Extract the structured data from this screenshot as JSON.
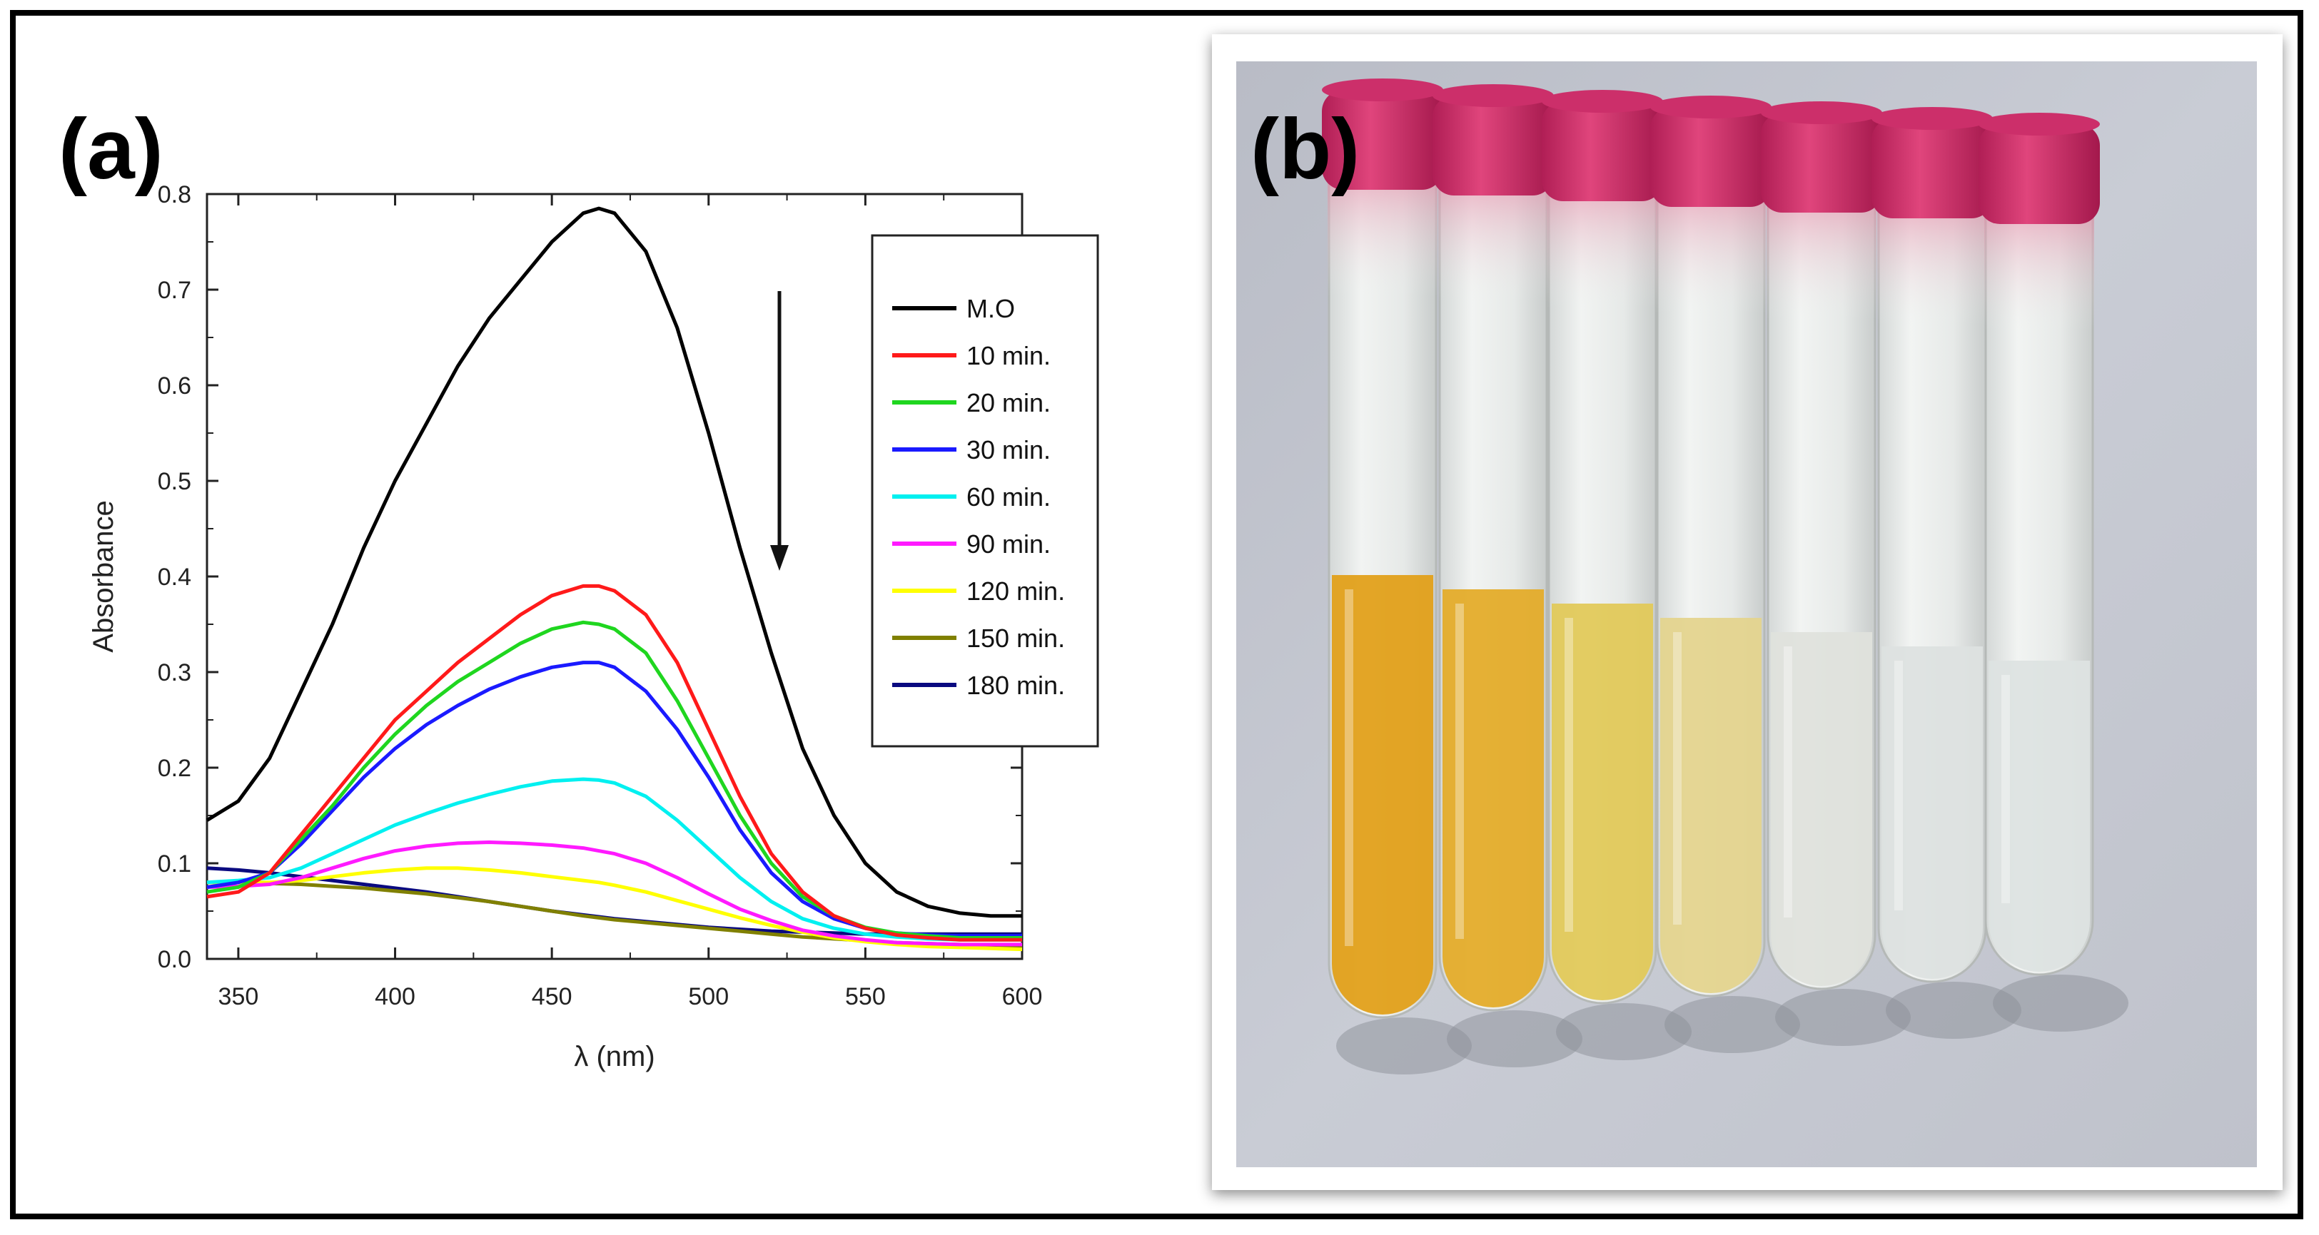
{
  "panels": {
    "a_label": "(a)",
    "b_label": "(b)"
  },
  "colors": {
    "M.O": "#000000",
    "10 min.": "#ff1a1a",
    "20 min.": "#1fd61f",
    "30 min.": "#1a1aff",
    "60 min.": "#00f0f0",
    "90 min.": "#ff1aff",
    "120 min.": "#ffff00",
    "150 min.": "#808000",
    "180 min.": "#0a0a80"
  },
  "chart_data": {
    "type": "line",
    "title": "",
    "xlabel": "λ (nm)",
    "ylabel": "Absorbance",
    "xlim": [
      340,
      600
    ],
    "ylim": [
      0.0,
      0.8
    ],
    "xticks": [
      350,
      400,
      450,
      500,
      550,
      600
    ],
    "yticks": [
      0.0,
      0.1,
      0.2,
      0.3,
      0.4,
      0.5,
      0.6,
      0.7,
      0.8
    ],
    "ytick_labels": [
      "0.0",
      "0.1",
      "0.2",
      "0.3",
      "0.4",
      "0.5",
      "0.6",
      "0.7",
      "0.8"
    ],
    "legend_position": "top-right",
    "annotation": "downward arrow indicating decreasing absorbance with time",
    "series": [
      {
        "name": "M.O",
        "x": [
          340,
          350,
          360,
          370,
          380,
          390,
          400,
          410,
          420,
          430,
          440,
          450,
          460,
          465,
          470,
          480,
          490,
          500,
          510,
          520,
          530,
          540,
          550,
          560,
          570,
          580,
          590,
          600
        ],
        "y": [
          0.145,
          0.165,
          0.21,
          0.28,
          0.35,
          0.43,
          0.5,
          0.56,
          0.62,
          0.67,
          0.71,
          0.75,
          0.78,
          0.785,
          0.78,
          0.74,
          0.66,
          0.55,
          0.43,
          0.32,
          0.22,
          0.15,
          0.1,
          0.07,
          0.055,
          0.048,
          0.045,
          0.045
        ]
      },
      {
        "name": "10 min.",
        "x": [
          340,
          350,
          360,
          370,
          380,
          390,
          400,
          410,
          420,
          430,
          440,
          450,
          460,
          465,
          470,
          480,
          490,
          500,
          510,
          520,
          530,
          540,
          550,
          560,
          570,
          580,
          590,
          600
        ],
        "y": [
          0.065,
          0.07,
          0.09,
          0.13,
          0.17,
          0.21,
          0.25,
          0.28,
          0.31,
          0.335,
          0.36,
          0.38,
          0.39,
          0.39,
          0.385,
          0.36,
          0.31,
          0.24,
          0.17,
          0.11,
          0.07,
          0.045,
          0.032,
          0.025,
          0.022,
          0.02,
          0.02,
          0.02
        ]
      },
      {
        "name": "20 min.",
        "x": [
          340,
          350,
          360,
          370,
          380,
          390,
          400,
          410,
          420,
          430,
          440,
          450,
          460,
          465,
          470,
          480,
          490,
          500,
          510,
          520,
          530,
          540,
          550,
          560,
          570,
          580,
          590,
          600
        ],
        "y": [
          0.07,
          0.075,
          0.09,
          0.125,
          0.16,
          0.2,
          0.235,
          0.265,
          0.29,
          0.31,
          0.33,
          0.345,
          0.352,
          0.35,
          0.345,
          0.32,
          0.27,
          0.21,
          0.15,
          0.1,
          0.065,
          0.045,
          0.033,
          0.027,
          0.024,
          0.022,
          0.022,
          0.022
        ]
      },
      {
        "name": "30 min.",
        "x": [
          340,
          350,
          360,
          370,
          380,
          390,
          400,
          410,
          420,
          430,
          440,
          450,
          460,
          465,
          470,
          480,
          490,
          500,
          510,
          520,
          530,
          540,
          550,
          560,
          570,
          580,
          590,
          600
        ],
        "y": [
          0.075,
          0.08,
          0.09,
          0.12,
          0.155,
          0.19,
          0.22,
          0.245,
          0.265,
          0.282,
          0.295,
          0.305,
          0.31,
          0.31,
          0.305,
          0.28,
          0.24,
          0.19,
          0.135,
          0.09,
          0.06,
          0.042,
          0.032,
          0.027,
          0.025,
          0.024,
          0.024,
          0.024
        ]
      },
      {
        "name": "60 min.",
        "x": [
          340,
          350,
          360,
          370,
          380,
          390,
          400,
          410,
          420,
          430,
          440,
          450,
          460,
          465,
          470,
          480,
          490,
          500,
          510,
          520,
          530,
          540,
          550,
          560,
          570,
          580,
          590,
          600
        ],
        "y": [
          0.08,
          0.082,
          0.085,
          0.095,
          0.11,
          0.125,
          0.14,
          0.152,
          0.163,
          0.172,
          0.18,
          0.186,
          0.188,
          0.187,
          0.184,
          0.17,
          0.145,
          0.115,
          0.085,
          0.06,
          0.042,
          0.032,
          0.026,
          0.023,
          0.021,
          0.02,
          0.02,
          0.02
        ]
      },
      {
        "name": "90 min.",
        "x": [
          340,
          350,
          360,
          370,
          380,
          390,
          400,
          410,
          420,
          430,
          440,
          450,
          460,
          465,
          470,
          480,
          490,
          500,
          510,
          520,
          530,
          540,
          550,
          560,
          570,
          580,
          590,
          600
        ],
        "y": [
          0.075,
          0.076,
          0.078,
          0.085,
          0.095,
          0.105,
          0.113,
          0.118,
          0.121,
          0.122,
          0.121,
          0.119,
          0.116,
          0.113,
          0.11,
          0.1,
          0.085,
          0.068,
          0.052,
          0.04,
          0.03,
          0.024,
          0.02,
          0.017,
          0.016,
          0.015,
          0.015,
          0.015
        ]
      },
      {
        "name": "120 min.",
        "x": [
          340,
          350,
          360,
          370,
          380,
          390,
          400,
          410,
          420,
          430,
          440,
          450,
          460,
          465,
          470,
          480,
          490,
          500,
          510,
          520,
          530,
          540,
          550,
          560,
          570,
          580,
          590,
          600
        ],
        "y": [
          0.08,
          0.08,
          0.08,
          0.082,
          0.086,
          0.09,
          0.093,
          0.095,
          0.095,
          0.093,
          0.09,
          0.086,
          0.082,
          0.08,
          0.077,
          0.07,
          0.061,
          0.052,
          0.043,
          0.035,
          0.028,
          0.022,
          0.018,
          0.015,
          0.013,
          0.012,
          0.011,
          0.01
        ]
      },
      {
        "name": "150 min.",
        "x": [
          340,
          350,
          360,
          370,
          380,
          390,
          400,
          410,
          420,
          430,
          440,
          450,
          460,
          465,
          470,
          480,
          490,
          500,
          510,
          520,
          530,
          540,
          550,
          560,
          570,
          580,
          590,
          600
        ],
        "y": [
          0.08,
          0.08,
          0.079,
          0.078,
          0.076,
          0.074,
          0.071,
          0.068,
          0.064,
          0.06,
          0.055,
          0.05,
          0.045,
          0.043,
          0.041,
          0.038,
          0.035,
          0.032,
          0.029,
          0.026,
          0.023,
          0.021,
          0.019,
          0.017,
          0.016,
          0.015,
          0.014,
          0.013
        ]
      },
      {
        "name": "180 min.",
        "x": [
          340,
          350,
          360,
          370,
          380,
          390,
          400,
          410,
          420,
          430,
          440,
          450,
          460,
          465,
          470,
          480,
          490,
          500,
          510,
          520,
          530,
          540,
          550,
          560,
          570,
          580,
          590,
          600
        ],
        "y": [
          0.095,
          0.093,
          0.09,
          0.086,
          0.082,
          0.078,
          0.074,
          0.07,
          0.065,
          0.06,
          0.055,
          0.05,
          0.046,
          0.044,
          0.042,
          0.039,
          0.036,
          0.033,
          0.031,
          0.029,
          0.028,
          0.027,
          0.026,
          0.026,
          0.026,
          0.026,
          0.026,
          0.026
        ]
      }
    ]
  }
}
